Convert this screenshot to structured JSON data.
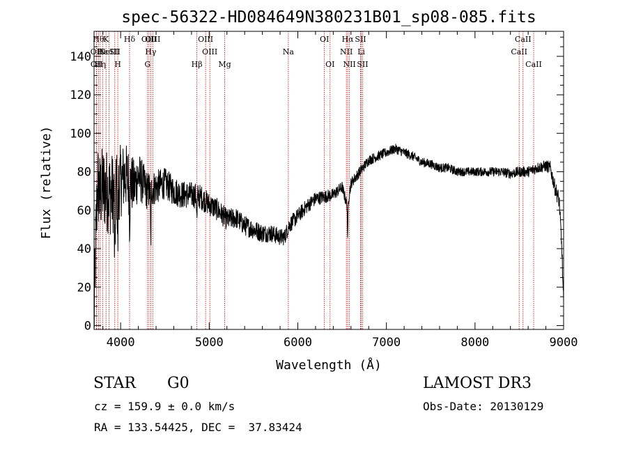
{
  "chart_data": {
    "type": "line",
    "title": "spec-56322-HD084649N380231B01_sp08-085.fits",
    "xlabel": "Wavelength (Å)",
    "ylabel": "Flux (relative)",
    "xlim": [
      3700,
      9000
    ],
    "ylim": [
      -2,
      153
    ],
    "xticks": [
      4000,
      5000,
      6000,
      7000,
      8000,
      9000
    ],
    "xtick_labels": [
      "4000",
      "5000",
      "6000",
      "7000",
      "8000",
      "9000"
    ],
    "yticks": [
      0,
      20,
      40,
      60,
      80,
      100,
      120,
      140
    ],
    "ytick_labels": [
      "0",
      "20",
      "40",
      "60",
      "80",
      "100",
      "120",
      "140"
    ],
    "line_color": "#000000",
    "marker_color": "#cc0000",
    "spectrum_anchors": {
      "x": [
        3700,
        3720,
        3740,
        3760,
        3800,
        3850,
        3900,
        3950,
        4000,
        4050,
        4100,
        4150,
        4200,
        4300,
        4400,
        4500,
        4600,
        4700,
        4800,
        4900,
        5000,
        5100,
        5200,
        5300,
        5400,
        5500,
        5600,
        5700,
        5800,
        5850,
        5900,
        6000,
        6100,
        6200,
        6300,
        6400,
        6500,
        6560,
        6600,
        6700,
        6800,
        6900,
        7000,
        7100,
        7200,
        7300,
        7400,
        7500,
        7600,
        7700,
        7800,
        7900,
        8000,
        8100,
        8200,
        8300,
        8400,
        8500,
        8600,
        8700,
        8800,
        8850,
        8900,
        8950,
        8980,
        9000
      ],
      "y": [
        2,
        45,
        75,
        68,
        72,
        70,
        68,
        72,
        75,
        78,
        76,
        72,
        78,
        70,
        72,
        74,
        70,
        68,
        68,
        67,
        63,
        60,
        55,
        56,
        52,
        50,
        48,
        48,
        46,
        46,
        52,
        57,
        62,
        66,
        67,
        68,
        72,
        62,
        74,
        80,
        86,
        88,
        90,
        92,
        90,
        88,
        85,
        84,
        82,
        82,
        80,
        80,
        80,
        80,
        80,
        80,
        79,
        80,
        80,
        82,
        83,
        82,
        72,
        65,
        40,
        10
      ]
    },
    "spectrum_noise": {
      "x": [
        3700,
        3900,
        4100,
        4300,
        4500,
        5000,
        5500,
        6000,
        6500,
        7000,
        8000,
        8800,
        9000
      ],
      "amplitude": [
        22,
        22,
        16,
        10,
        8,
        6,
        5,
        4,
        3,
        2.5,
        2.2,
        3,
        5
      ]
    },
    "spectrum_dips": [
      {
        "x": 3934,
        "depth": 40,
        "width": 6
      },
      {
        "x": 3968,
        "depth": 30,
        "width": 6
      },
      {
        "x": 4101,
        "depth": 20,
        "width": 6
      },
      {
        "x": 4340,
        "depth": 30,
        "width": 5
      },
      {
        "x": 4861,
        "depth": 12,
        "width": 5
      },
      {
        "x": 6563,
        "depth": 20,
        "width": 4
      }
    ],
    "lines": [
      {
        "label": "Hθ",
        "x": 3750,
        "row": 0
      },
      {
        "label": "OII",
        "x": 3727,
        "row": 1
      },
      {
        "label": "OII",
        "x": 3729,
        "row": 2
      },
      {
        "label": "Hη",
        "x": 3770,
        "row": 2
      },
      {
        "label": "Hε",
        "x": 3797,
        "row": 1
      },
      {
        "label": "K",
        "x": 3835,
        "row": 0
      },
      {
        "label": "NeIII",
        "x": 3869,
        "row": 1
      },
      {
        "label": "SII",
        "x": 3934,
        "row": 1
      },
      {
        "label": "H",
        "x": 3968,
        "row": 2
      },
      {
        "label": "Hδ",
        "x": 4101,
        "row": 0
      },
      {
        "label": "G",
        "x": 4304,
        "row": 2
      },
      {
        "label": "OIII",
        "x": 4320,
        "row": 0
      },
      {
        "label": "Hγ",
        "x": 4340,
        "row": 1
      },
      {
        "label": "OIII",
        "x": 4363,
        "row": 0
      },
      {
        "label": "Hβ",
        "x": 4861,
        "row": 2
      },
      {
        "label": "OIII",
        "x": 4959,
        "row": 0
      },
      {
        "label": "OIII",
        "x": 5007,
        "row": 1
      },
      {
        "label": "Mg",
        "x": 5175,
        "row": 2
      },
      {
        "label": "Na",
        "x": 5893,
        "row": 1
      },
      {
        "label": "OI",
        "x": 6300,
        "row": 0
      },
      {
        "label": "OI",
        "x": 6364,
        "row": 2
      },
      {
        "label": "NII",
        "x": 6548,
        "row": 1
      },
      {
        "label": "Hα",
        "x": 6563,
        "row": 0
      },
      {
        "label": "NII",
        "x": 6583,
        "row": 2
      },
      {
        "label": "SII",
        "x": 6708,
        "row": 0
      },
      {
        "label": "Li",
        "x": 6716,
        "row": 1
      },
      {
        "label": "SII",
        "x": 6731,
        "row": 2
      },
      {
        "label": "CaII",
        "x": 8498,
        "row": 1
      },
      {
        "label": "CaII",
        "x": 8542,
        "row": 0
      },
      {
        "label": "CaII",
        "x": 8662,
        "row": 2
      }
    ]
  },
  "info": {
    "object_class": "STAR",
    "subclass": "G0",
    "survey": "LAMOST DR3",
    "redshift": "cz = 159.9 ± 0.0 km/s",
    "obs_date": "Obs-Date: 20130129",
    "coords": "RA = 133.54425, DEC =  37.83424"
  }
}
